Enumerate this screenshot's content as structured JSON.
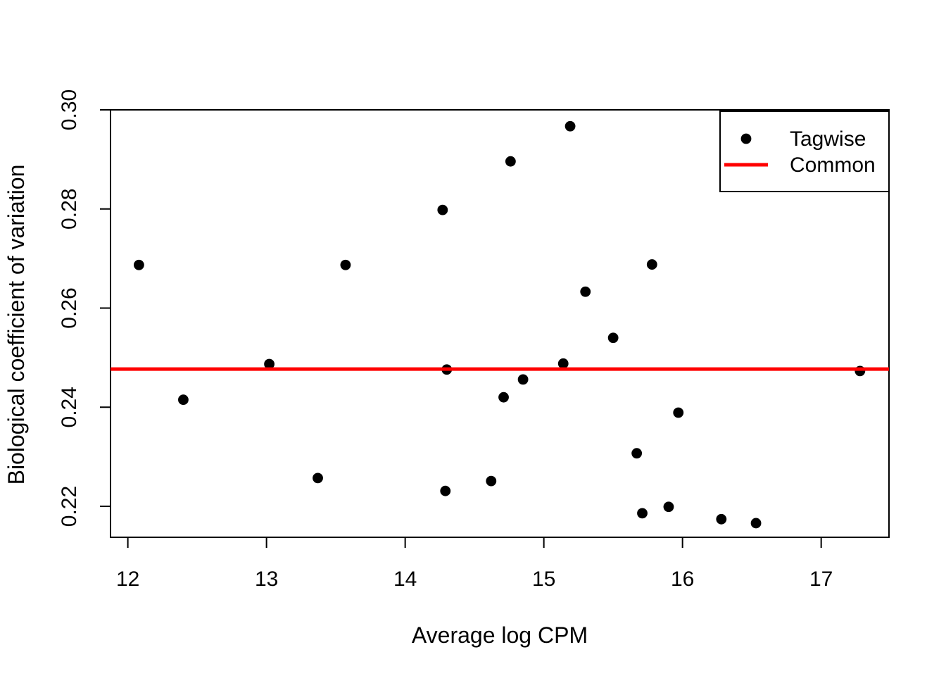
{
  "figure": {
    "background_color": "#ffffff",
    "axis_color": "#000000",
    "point_color": "#000000",
    "common_line_color": "#ff0000"
  },
  "chart_data": {
    "type": "scatter",
    "title": "",
    "xlabel": "Average log CPM",
    "ylabel": "Biological coefficient of variation",
    "xlim": [
      11.875,
      17.489
    ],
    "ylim": [
      0.21375,
      0.3
    ],
    "x_ticks": [
      "12",
      "13",
      "14",
      "15",
      "16",
      "17"
    ],
    "y_ticks": [
      "0.22",
      "0.24",
      "0.26",
      "0.28",
      "0.30"
    ],
    "grid": false,
    "legend_position": "top-right",
    "series": [
      {
        "name": "Tagwise",
        "type": "scatter",
        "marker": "filled-circle",
        "color": "#000000",
        "points": [
          [
            12.08,
            0.2687
          ],
          [
            12.4,
            0.2415
          ],
          [
            13.02,
            0.2487
          ],
          [
            13.37,
            0.2257
          ],
          [
            13.57,
            0.2687
          ],
          [
            14.27,
            0.2798
          ],
          [
            14.29,
            0.2231
          ],
          [
            14.3,
            0.2476
          ],
          [
            14.62,
            0.2251
          ],
          [
            14.71,
            0.242
          ],
          [
            14.76,
            0.2896
          ],
          [
            14.85,
            0.2456
          ],
          [
            15.14,
            0.2488
          ],
          [
            15.19,
            0.2967
          ],
          [
            15.3,
            0.2633
          ],
          [
            15.5,
            0.254
          ],
          [
            15.67,
            0.2307
          ],
          [
            15.71,
            0.2186
          ],
          [
            15.78,
            0.2688
          ],
          [
            15.9,
            0.2199
          ],
          [
            15.97,
            0.2389
          ],
          [
            16.28,
            0.2174
          ],
          [
            16.53,
            0.2166
          ],
          [
            17.28,
            0.2473
          ]
        ]
      },
      {
        "name": "Common",
        "type": "hline",
        "color": "#ff0000",
        "y": 0.2477
      }
    ],
    "legend": {
      "items": [
        {
          "label": "Tagwise",
          "marker": "point",
          "color": "#000000"
        },
        {
          "label": "Common",
          "marker": "line",
          "color": "#ff0000"
        }
      ]
    }
  }
}
